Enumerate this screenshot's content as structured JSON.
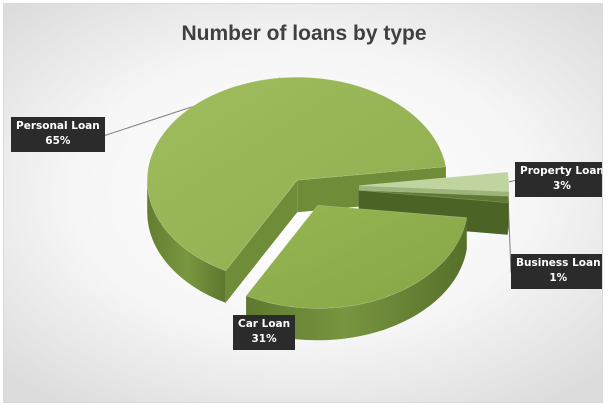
{
  "chart_data": {
    "type": "pie",
    "title": "Number of loans by type",
    "categories": [
      "Property Loan",
      "Business Loan",
      "Car Loan",
      "Personal Loan"
    ],
    "values": [
      3,
      1,
      31,
      65
    ],
    "value_labels": [
      "3%",
      "1%",
      "31%",
      "65%"
    ],
    "exploded": true,
    "three_d": true,
    "legend": "none",
    "colors": {
      "Property Loan": "#bfd49e",
      "Business Loan": "#5f7a32",
      "Car Loan": "#8fb04f",
      "Personal Loan": "#98b757"
    },
    "label_background": "#2b2b2b"
  }
}
